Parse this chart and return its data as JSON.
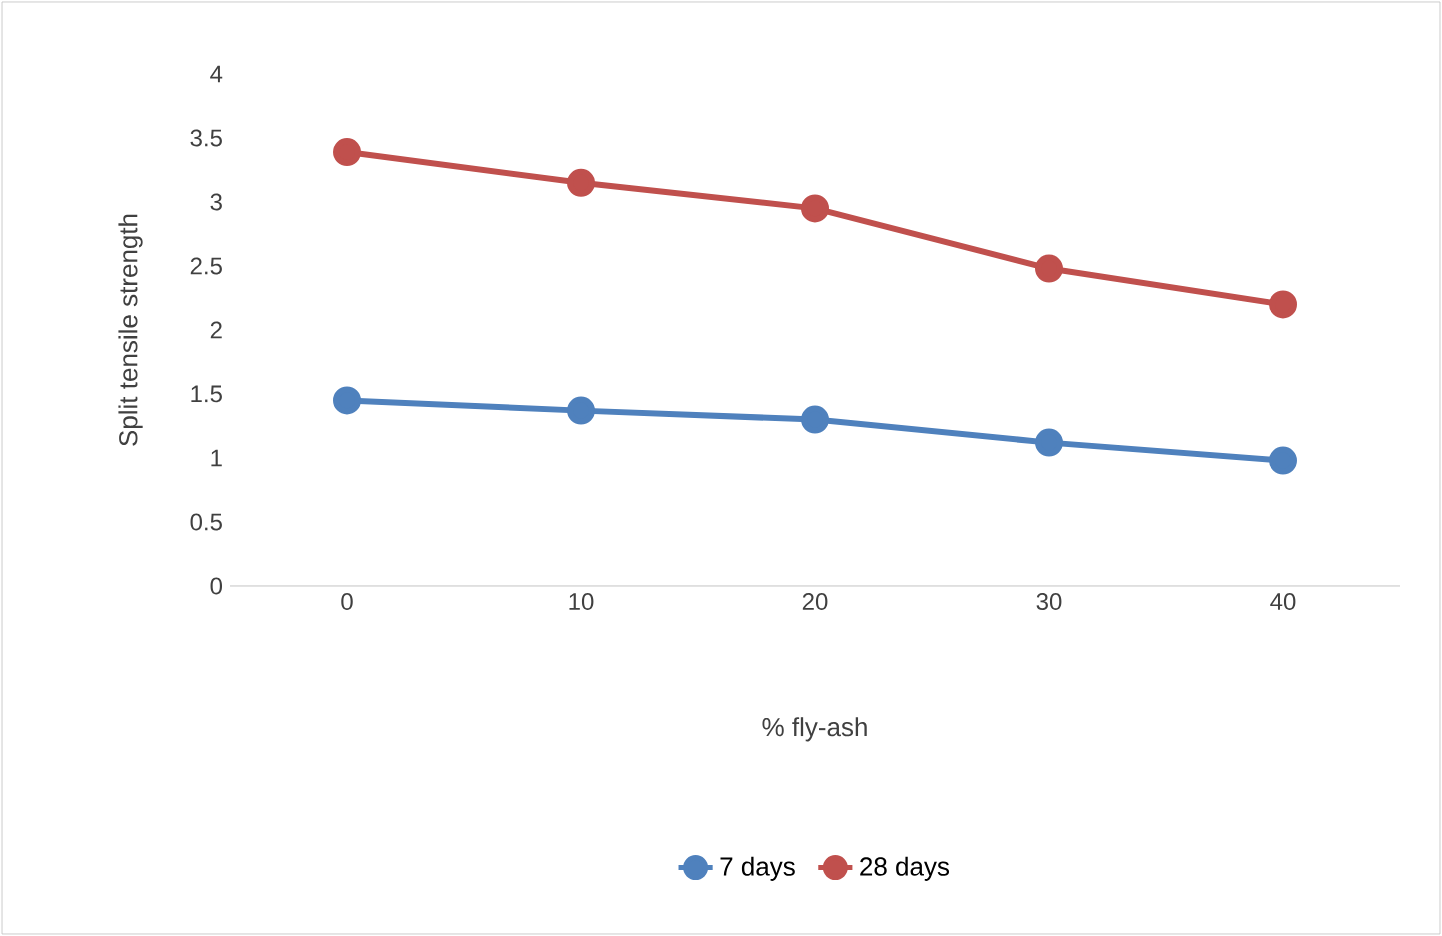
{
  "chart_data": {
    "type": "line",
    "xlabel": "% fly-ash",
    "ylabel": "Split tensile strength",
    "categories": [
      "0",
      "10",
      "20",
      "30",
      "40"
    ],
    "series": [
      {
        "name": "7 days",
        "color": "#4f81bd",
        "values": [
          1.45,
          1.37,
          1.3,
          1.12,
          0.98
        ]
      },
      {
        "name": "28 days",
        "color": "#c0504d",
        "values": [
          3.39,
          3.15,
          2.95,
          2.48,
          2.2
        ]
      }
    ],
    "ylim": [
      0,
      4
    ],
    "yticks": [
      0,
      0.5,
      1,
      1.5,
      2,
      2.5,
      3,
      3.5,
      4
    ],
    "grid": false,
    "legend": "bottom",
    "marker": "circle",
    "line_style": "solid"
  }
}
